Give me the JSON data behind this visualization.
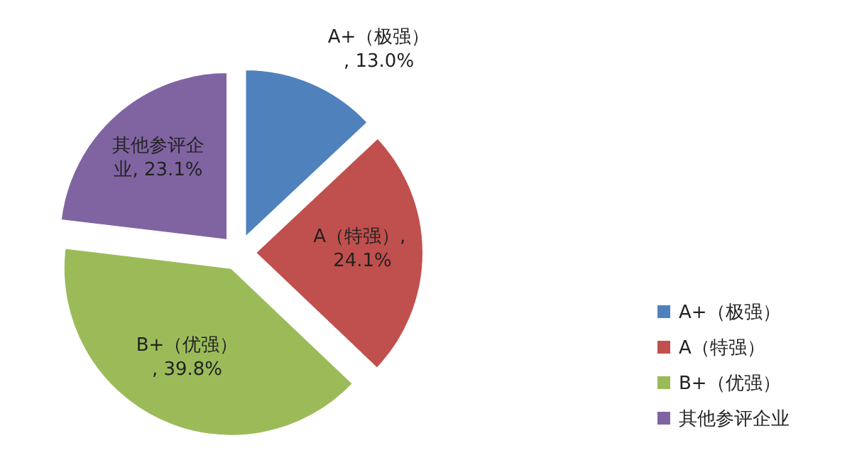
{
  "chart_data": {
    "type": "pie",
    "categories": [
      "A+（极强）",
      "A（特强）",
      "B+（优强）",
      "其他参评企业"
    ],
    "values": [
      13.0,
      24.1,
      39.8,
      23.1
    ],
    "colors": [
      "#4f81bd",
      "#c0504d",
      "#9bbb59",
      "#8064a2"
    ],
    "value_labels": [
      "A+（极强）, 13.0%",
      "A（特强）, 24.1%",
      "B+（优强）, 39.8%",
      "其他参评企业, 23.1%"
    ],
    "legend": "right"
  }
}
